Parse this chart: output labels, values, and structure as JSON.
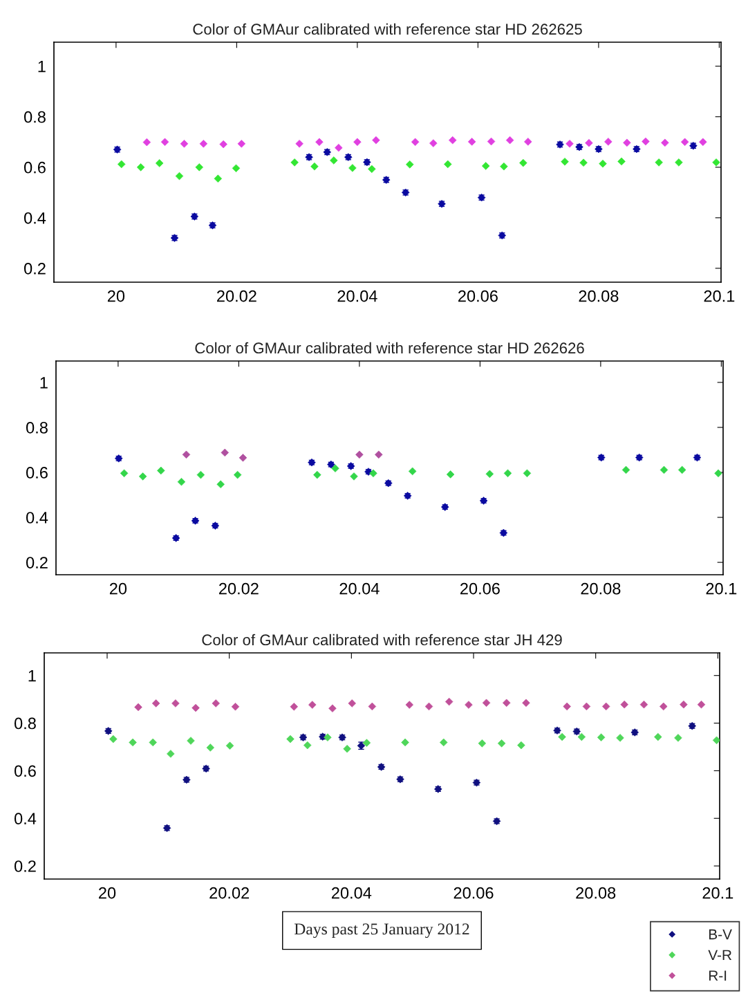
{
  "chart_data": [
    {
      "type": "scatter",
      "title": "Color of GMAur calibrated with reference star HD 262625",
      "xlim": [
        19.9897,
        20.1003
      ],
      "ylim": [
        0.145,
        1.095
      ],
      "xticks": [
        20,
        20.02,
        20.04,
        20.06,
        20.08,
        20.1
      ],
      "yticks": [
        0.2,
        0.4,
        0.6,
        0.8,
        1
      ],
      "marker": "diamond",
      "grid": false,
      "series": [
        {
          "color": "#0a0aa0",
          "x": [
            20.0002,
            20.0097,
            20.013,
            20.016,
            20.032,
            20.035,
            20.0385,
            20.0416,
            20.0448,
            20.048,
            20.054,
            20.0606,
            20.064,
            20.0736,
            20.0768,
            20.08,
            20.0863,
            20.0957
          ],
          "values": [
            0.67,
            0.32,
            0.405,
            0.37,
            0.64,
            0.66,
            0.64,
            0.62,
            0.55,
            0.5,
            0.455,
            0.48,
            0.33,
            0.69,
            0.68,
            0.672,
            0.672,
            0.685
          ],
          "errors": [
            0.01,
            0.01,
            0.01,
            0.01,
            0.01,
            0.01,
            0.01,
            0.01,
            0.01,
            0.01,
            0.01,
            0.01,
            0.01,
            0.01,
            0.01,
            0.01,
            0.01,
            0.01
          ]
        },
        {
          "color": "#33e633",
          "x": [
            20.0009,
            20.0041,
            20.0072,
            20.0105,
            20.0138,
            20.0169,
            20.0199,
            20.0296,
            20.0329,
            20.0361,
            20.0392,
            20.0424,
            20.0487,
            20.055,
            20.0613,
            20.0643,
            20.0675,
            20.0744,
            20.0775,
            20.0807,
            20.0838,
            20.09,
            20.0933,
            20.0995
          ],
          "values": [
            0.612,
            0.6,
            0.616,
            0.565,
            0.6,
            0.555,
            0.596,
            0.619,
            0.603,
            0.627,
            0.597,
            0.593,
            0.611,
            0.612,
            0.605,
            0.603,
            0.617,
            0.622,
            0.618,
            0.614,
            0.623,
            0.619,
            0.619,
            0.619
          ]
        },
        {
          "color": "#e040e0",
          "x": [
            20.0051,
            20.0081,
            20.0113,
            20.0145,
            20.0178,
            20.0208,
            20.0304,
            20.0337,
            20.0369,
            20.04,
            20.0431,
            20.0496,
            20.0526,
            20.0558,
            20.059,
            20.0622,
            20.0653,
            20.0683,
            20.0752,
            20.0784,
            20.0816,
            20.0847,
            20.0878,
            20.091,
            20.0943,
            20.0973
          ],
          "values": [
            0.699,
            0.7,
            0.693,
            0.693,
            0.691,
            0.693,
            0.693,
            0.7,
            0.677,
            0.7,
            0.707,
            0.7,
            0.695,
            0.707,
            0.701,
            0.702,
            0.707,
            0.701,
            0.693,
            0.696,
            0.701,
            0.697,
            0.702,
            0.697,
            0.7,
            0.7
          ]
        }
      ]
    },
    {
      "type": "scatter",
      "title": "Color of GMAur calibrated with reference star HD 262626",
      "xlim": [
        19.9897,
        20.1003
      ],
      "ylim": [
        0.145,
        1.095
      ],
      "xticks": [
        20,
        20.02,
        20.04,
        20.06,
        20.08,
        20.1
      ],
      "yticks": [
        0.2,
        0.4,
        0.6,
        0.8,
        1
      ],
      "marker": "diamond",
      "grid": false,
      "series": [
        {
          "color": "#0a0aa0",
          "x": [
            20.0001,
            20.0096,
            20.0128,
            20.0161,
            20.0321,
            20.0353,
            20.0386,
            20.0415,
            20.0448,
            20.048,
            20.0542,
            20.0606,
            20.0639,
            20.0801,
            20.0864,
            20.096
          ],
          "values": [
            0.662,
            0.308,
            0.385,
            0.363,
            0.644,
            0.635,
            0.628,
            0.603,
            0.552,
            0.496,
            0.446,
            0.474,
            0.331,
            0.666,
            0.666,
            0.666
          ],
          "errors": [
            0.01,
            0.01,
            0.01,
            0.01,
            0.01,
            0.01,
            0.01,
            0.01,
            0.01,
            0.01,
            0.01,
            0.01,
            0.01,
            0.01,
            0.01,
            0.01
          ]
        },
        {
          "color": "#33d64a",
          "x": [
            20.001,
            20.0041,
            20.0071,
            20.0105,
            20.0137,
            20.017,
            20.0198,
            20.033,
            20.036,
            20.0391,
            20.0423,
            20.0488,
            20.0551,
            20.0616,
            20.0646,
            20.0678,
            20.0842,
            20.0905,
            20.0935,
            20.0995
          ],
          "values": [
            0.596,
            0.582,
            0.608,
            0.558,
            0.589,
            0.547,
            0.589,
            0.589,
            0.618,
            0.582,
            0.596,
            0.605,
            0.591,
            0.593,
            0.596,
            0.596,
            0.611,
            0.611,
            0.611,
            0.596
          ]
        },
        {
          "color": "#b050a0",
          "x": [
            20.0113,
            20.0177,
            20.0207,
            20.04,
            20.0432
          ],
          "values": [
            0.679,
            0.688,
            0.665,
            0.679,
            0.679
          ]
        }
      ]
    },
    {
      "type": "scatter",
      "title": "Color of GMAur calibrated with reference star JH 429",
      "xlabel": "Days past 25 January 2012",
      "xlim": [
        19.9897,
        20.1003
      ],
      "ylim": [
        0.145,
        1.095
      ],
      "xticks": [
        20,
        20.02,
        20.04,
        20.06,
        20.08,
        20.1
      ],
      "yticks": [
        0.2,
        0.4,
        0.6,
        0.8,
        1
      ],
      "marker": "diamond",
      "grid": false,
      "legend": "bottom right",
      "series": [
        {
          "name": "B-V",
          "color": "#101080",
          "x": [
            20.0002,
            20.0098,
            20.013,
            20.0162,
            20.0321,
            20.0353,
            20.0385,
            20.0416,
            20.0449,
            20.048,
            20.0542,
            20.0605,
            20.0638,
            20.0737,
            20.0769,
            20.0864,
            20.0958
          ],
          "values": [
            0.767,
            0.359,
            0.562,
            0.609,
            0.74,
            0.743,
            0.74,
            0.705,
            0.616,
            0.564,
            0.523,
            0.55,
            0.388,
            0.769,
            0.765,
            0.761,
            0.788
          ],
          "errors": [
            0.01,
            0.01,
            0.01,
            0.01,
            0.01,
            0.01,
            0.01,
            0.015,
            0.01,
            0.01,
            0.01,
            0.01,
            0.01,
            0.01,
            0.01,
            0.01,
            0.01
          ]
        },
        {
          "name": "V-R",
          "color": "#4fd65a",
          "x": [
            20.001,
            20.0042,
            20.0075,
            20.0104,
            20.0137,
            20.0169,
            20.0201,
            20.03,
            20.0328,
            20.0361,
            20.0393,
            20.0425,
            20.0488,
            20.0551,
            20.0614,
            20.0646,
            20.0678,
            20.0745,
            20.0777,
            20.0809,
            20.084,
            20.0902,
            20.0935,
            20.0998
          ],
          "values": [
            0.733,
            0.719,
            0.719,
            0.671,
            0.726,
            0.697,
            0.705,
            0.733,
            0.707,
            0.74,
            0.692,
            0.717,
            0.719,
            0.719,
            0.715,
            0.715,
            0.707,
            0.742,
            0.742,
            0.74,
            0.738,
            0.742,
            0.738,
            0.728
          ]
        },
        {
          "name": "R-I",
          "color": "#c0509a",
          "x": [
            20.0051,
            20.008,
            20.0112,
            20.0145,
            20.0178,
            20.021,
            20.0306,
            20.0336,
            20.0369,
            20.0401,
            20.0434,
            20.0495,
            20.0527,
            20.056,
            20.0592,
            20.0621,
            20.0654,
            20.0686,
            20.0753,
            20.0785,
            20.0817,
            20.0847,
            20.0879,
            20.0911,
            20.0944,
            20.0973
          ],
          "values": [
            0.867,
            0.883,
            0.883,
            0.864,
            0.883,
            0.869,
            0.869,
            0.877,
            0.862,
            0.883,
            0.87,
            0.877,
            0.87,
            0.89,
            0.877,
            0.885,
            0.885,
            0.885,
            0.87,
            0.87,
            0.87,
            0.878,
            0.878,
            0.87,
            0.878,
            0.878
          ]
        }
      ]
    }
  ]
}
